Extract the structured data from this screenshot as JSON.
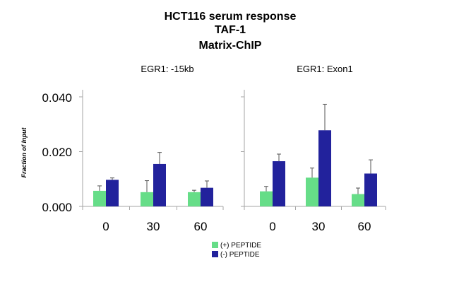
{
  "chart_data": {
    "type": "bar",
    "title_lines": [
      "HCT116 serum response",
      "TAF-1",
      "Matrix-ChIP"
    ],
    "ylabel": "Fraction of Input",
    "ylim": [
      0,
      0.04
    ],
    "yticks": [
      "0.000",
      "0.020",
      "0.040"
    ],
    "ytick_values": [
      0,
      0.02,
      0.04
    ],
    "categories": [
      "0",
      "30",
      "60"
    ],
    "legend": {
      "placement": "bottom-center",
      "entries": [
        {
          "name": "(+) PEPTIDE",
          "color": "#66dd88"
        },
        {
          "name": "(-) PEPTIDE",
          "color": "#22229c"
        }
      ]
    },
    "panels": [
      {
        "title": "EGR1: -15kb",
        "series": [
          {
            "name": "(+) PEPTIDE",
            "color": "#66dd88",
            "values": [
              0.0057,
              0.0052,
              0.0052
            ],
            "errors": [
              0.0018,
              0.0042,
              0.0007
            ]
          },
          {
            "name": "(-) PEPTIDE",
            "color": "#22229c",
            "values": [
              0.0097,
              0.0155,
              0.0068
            ],
            "errors": [
              0.0007,
              0.0042,
              0.0025
            ]
          }
        ]
      },
      {
        "title": "EGR1: Exon1",
        "series": [
          {
            "name": "(+) PEPTIDE",
            "color": "#66dd88",
            "values": [
              0.0055,
              0.0105,
              0.0045
            ],
            "errors": [
              0.0018,
              0.0035,
              0.0022
            ]
          },
          {
            "name": "(-) PEPTIDE",
            "color": "#22229c",
            "values": [
              0.0165,
              0.0278,
              0.012
            ],
            "errors": [
              0.0026,
              0.0095,
              0.005
            ]
          }
        ]
      }
    ]
  }
}
